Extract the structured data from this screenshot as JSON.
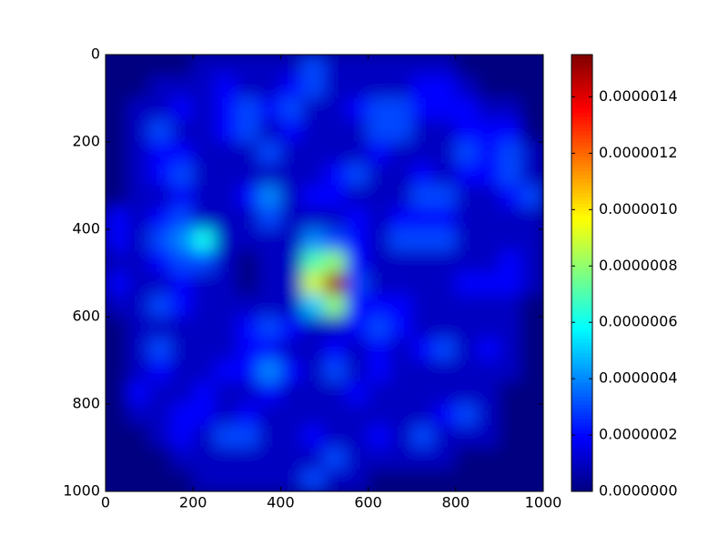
{
  "chart_data": {
    "type": "heatmap",
    "cmap": "jet",
    "xlim": [
      0,
      1000
    ],
    "ylim": [
      1000,
      0
    ],
    "xticks": [
      0,
      200,
      400,
      600,
      800,
      1000
    ],
    "yticks": [
      0,
      200,
      400,
      600,
      800,
      1000
    ],
    "clim": [
      0,
      1.55e-06
    ],
    "cbar_ticks": [
      {
        "value": 0,
        "label": "0.0000000"
      },
      {
        "value": 2e-07,
        "label": "0.0000002"
      },
      {
        "value": 4e-07,
        "label": "0.0000004"
      },
      {
        "value": 6e-07,
        "label": "0.0000006"
      },
      {
        "value": 8e-07,
        "label": "0.0000008"
      },
      {
        "value": 1e-06,
        "label": "0.0000010"
      },
      {
        "value": 1.2e-06,
        "label": "0.0000012"
      },
      {
        "value": 1.4e-06,
        "label": "0.0000014"
      }
    ],
    "z": [
      [
        0,
        0,
        0,
        0,
        1e-07,
        1e-07,
        1e-07,
        1e-07,
        1e-07,
        3e-07,
        1e-07,
        1e-07,
        1e-07,
        1e-07,
        1e-07,
        1e-07,
        0,
        0,
        0,
        0
      ],
      [
        0,
        0,
        1e-07,
        1e-07,
        1e-07,
        2e-07,
        1e-07,
        1e-07,
        2e-07,
        3e-07,
        1e-07,
        1e-07,
        1e-07,
        1e-07,
        2e-07,
        2e-07,
        1e-07,
        0,
        0,
        0
      ],
      [
        0,
        1e-07,
        1e-07,
        2e-07,
        1e-07,
        2e-07,
        3e-07,
        2e-07,
        3e-07,
        1e-07,
        1e-07,
        2e-07,
        3e-07,
        3e-07,
        2e-07,
        2e-07,
        2e-07,
        1e-07,
        1e-07,
        0
      ],
      [
        0,
        1e-07,
        3e-07,
        1e-07,
        1e-07,
        2e-07,
        3e-07,
        1e-07,
        2e-07,
        1e-07,
        1e-07,
        1e-07,
        3e-07,
        3e-07,
        1e-07,
        1e-07,
        2e-07,
        2e-07,
        2e-07,
        0
      ],
      [
        0,
        1e-07,
        2e-07,
        2e-07,
        1e-07,
        1e-07,
        1e-07,
        3e-07,
        1e-07,
        1e-07,
        1e-07,
        1e-07,
        2e-07,
        1e-07,
        1e-07,
        1e-07,
        3e-07,
        2e-07,
        3e-07,
        1e-07
      ],
      [
        0,
        1e-07,
        2e-07,
        3e-07,
        1e-07,
        1e-07,
        1e-07,
        1e-07,
        1e-07,
        1e-07,
        2e-07,
        3e-07,
        1e-07,
        1e-07,
        2e-07,
        1e-07,
        2e-07,
        2e-07,
        3e-07,
        1e-07
      ],
      [
        0,
        1e-07,
        1e-07,
        2e-07,
        1e-07,
        1e-07,
        2e-07,
        4e-07,
        1e-07,
        2e-07,
        2e-07,
        1e-07,
        1e-07,
        1e-07,
        3e-07,
        3e-07,
        1e-07,
        1e-07,
        2e-07,
        3e-07
      ],
      [
        2e-07,
        1e-07,
        2e-07,
        3e-07,
        1e-07,
        1e-07,
        1e-07,
        3e-07,
        1e-07,
        1e-07,
        1e-07,
        2e-07,
        1e-07,
        2e-07,
        2e-07,
        2e-07,
        1e-07,
        1e-07,
        1e-07,
        1e-07
      ],
      [
        2e-07,
        1e-07,
        3e-07,
        4e-07,
        6e-07,
        1e-07,
        1e-07,
        1e-07,
        1e-07,
        4e-07,
        3e-07,
        2e-07,
        1e-07,
        3e-07,
        3e-07,
        3e-07,
        1e-07,
        1e-07,
        1e-07,
        1e-07
      ],
      [
        1e-07,
        1e-07,
        2e-07,
        3e-07,
        3e-07,
        1e-07,
        0,
        1e-07,
        1e-07,
        7e-07,
        8e-07,
        2e-07,
        1e-07,
        1e-07,
        1e-07,
        1e-07,
        1e-07,
        1e-07,
        2e-07,
        1e-07
      ],
      [
        2e-07,
        1e-07,
        1e-07,
        2e-07,
        1e-07,
        1e-07,
        0,
        1e-07,
        1e-07,
        9e-07,
        1.5e-06,
        3e-07,
        1e-07,
        1e-07,
        1e-07,
        1e-07,
        2e-07,
        2e-07,
        2e-07,
        1e-07
      ],
      [
        1e-07,
        1e-07,
        3e-07,
        2e-07,
        1e-07,
        1e-07,
        1e-07,
        1e-07,
        1e-07,
        5e-07,
        8e-07,
        2e-07,
        2e-07,
        2e-07,
        1e-07,
        1e-07,
        1e-07,
        1e-07,
        1e-07,
        0
      ],
      [
        0,
        1e-07,
        1e-07,
        1e-07,
        1e-07,
        1e-07,
        2e-07,
        3e-07,
        2e-07,
        1e-07,
        1e-07,
        2e-07,
        3e-07,
        2e-07,
        1e-07,
        1e-07,
        1e-07,
        1e-07,
        1e-07,
        0
      ],
      [
        0,
        1e-07,
        3e-07,
        1e-07,
        1e-07,
        1e-07,
        2e-07,
        2e-07,
        1e-07,
        1e-07,
        2e-07,
        1e-07,
        2e-07,
        1e-07,
        2e-07,
        3e-07,
        1e-07,
        2e-07,
        1e-07,
        0
      ],
      [
        0,
        1e-07,
        2e-07,
        1e-07,
        1e-07,
        2e-07,
        2e-07,
        4e-07,
        2e-07,
        1e-07,
        3e-07,
        1e-07,
        2e-07,
        1e-07,
        1e-07,
        1e-07,
        1e-07,
        1e-07,
        1e-07,
        0
      ],
      [
        0,
        2e-07,
        1e-07,
        1e-07,
        2e-07,
        1e-07,
        1e-07,
        2e-07,
        1e-07,
        1e-07,
        1e-07,
        2e-07,
        1e-07,
        1e-07,
        1e-07,
        1e-07,
        1e-07,
        1e-07,
        0,
        0
      ],
      [
        0,
        1e-07,
        1e-07,
        2e-07,
        2e-07,
        1e-07,
        2e-07,
        1e-07,
        1e-07,
        1e-07,
        1e-07,
        1e-07,
        1e-07,
        1e-07,
        1e-07,
        2e-07,
        3e-07,
        1e-07,
        0,
        0
      ],
      [
        0,
        0,
        1e-07,
        2e-07,
        1e-07,
        3e-07,
        3e-07,
        1e-07,
        1e-07,
        2e-07,
        1e-07,
        1e-07,
        2e-07,
        1e-07,
        3e-07,
        1e-07,
        1e-07,
        1e-07,
        0,
        0
      ],
      [
        0,
        0,
        0,
        1e-07,
        1e-07,
        1e-07,
        1e-07,
        1e-07,
        1e-07,
        1e-07,
        3e-07,
        1e-07,
        1e-07,
        1e-07,
        1e-07,
        1e-07,
        0,
        0,
        0,
        0
      ],
      [
        0,
        0,
        0,
        0,
        1e-07,
        1e-07,
        1e-07,
        1e-07,
        1e-07,
        3e-07,
        1e-07,
        1e-07,
        0,
        0,
        0,
        0,
        0,
        0,
        0,
        0
      ]
    ]
  }
}
